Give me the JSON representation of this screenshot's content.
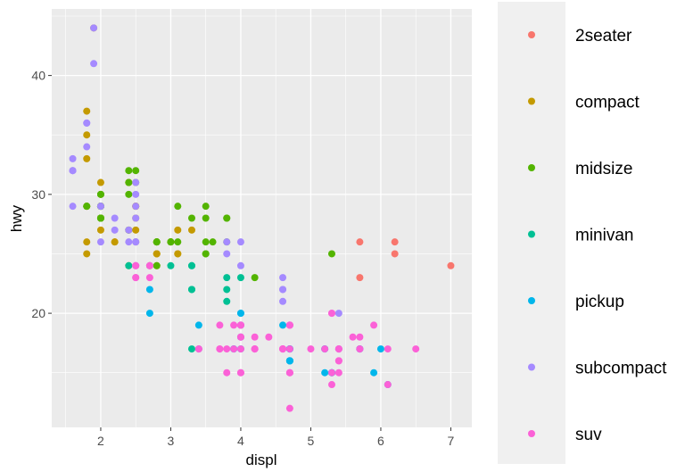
{
  "chart_data": {
    "type": "scatter",
    "title": "",
    "xlabel": "displ",
    "ylabel": "hwy",
    "xlim": [
      1.3,
      7.3
    ],
    "ylim": [
      10.4,
      45.6
    ],
    "x_ticks": [
      2,
      3,
      4,
      5,
      6,
      7
    ],
    "y_ticks": [
      20,
      30,
      40
    ],
    "x_tick_labels": [
      "2",
      "3",
      "4",
      "5",
      "6",
      "7"
    ],
    "y_tick_labels": [
      "20",
      "30",
      "40"
    ],
    "grid": true,
    "background": "#ebebeb",
    "grid_color": "#ffffff",
    "legend_position": "right",
    "series": [
      {
        "name": "2seater",
        "color": "#F8766D",
        "x": [
          5.7,
          5.7,
          6.2,
          6.2,
          7.0
        ],
        "y": [
          26,
          23,
          26,
          25,
          24
        ]
      },
      {
        "name": "compact",
        "color": "#C49A00",
        "x": [
          1.8,
          1.8,
          2.0,
          2.0,
          2.8,
          2.8,
          3.1,
          1.8,
          1.8,
          2.0,
          2.0,
          2.8,
          2.8,
          3.1,
          3.1,
          2.4,
          2.4,
          2.2,
          2.2,
          2.4,
          2.4,
          3.0,
          3.0,
          3.3,
          1.8,
          1.8,
          2.0,
          2.5,
          2.5,
          2.8,
          2.8,
          2.0,
          2.0,
          2.5,
          2.5,
          2.7,
          1.9,
          1.8,
          2.0,
          2.5,
          2.5
        ],
        "y": [
          29,
          29,
          31,
          30,
          26,
          26,
          27,
          26,
          25,
          28,
          27,
          25,
          25,
          25,
          25,
          31,
          31,
          26,
          26,
          27,
          24,
          26,
          26,
          27,
          33,
          35,
          29,
          29,
          27,
          24,
          25,
          28,
          29,
          29,
          26,
          24,
          44,
          37,
          29,
          28,
          29
        ]
      },
      {
        "name": "midsize",
        "color": "#53B400",
        "x": [
          2.8,
          3.1,
          4.2,
          2.4,
          2.4,
          3.1,
          3.5,
          3.6,
          2.4,
          2.4,
          2.5,
          2.5,
          3.3,
          3.5,
          3.0,
          3.0,
          3.5,
          3.5,
          3.8,
          3.8,
          3.8,
          5.3,
          1.8,
          1.8,
          2.0,
          2.0,
          2.8,
          2.0,
          2.0,
          2.0,
          2.0,
          2.8,
          2.0,
          2.0,
          2.0,
          2.0,
          2.0,
          2.8,
          3.5
        ],
        "y": [
          26,
          26,
          23,
          30,
          32,
          29,
          28,
          26,
          31,
          27,
          32,
          31,
          28,
          29,
          26,
          26,
          26,
          25,
          28,
          28,
          26,
          25,
          29,
          29,
          28,
          29,
          26,
          30,
          29,
          29,
          30,
          24,
          28,
          28,
          29,
          29,
          28,
          26,
          25
        ]
      },
      {
        "name": "minivan",
        "color": "#00C094",
        "x": [
          2.4,
          3.0,
          3.3,
          3.3,
          3.3,
          3.3,
          3.3,
          3.8,
          3.8,
          3.8,
          4.0
        ],
        "y": [
          24,
          24,
          22,
          22,
          24,
          24,
          17,
          22,
          21,
          23,
          23
        ]
      },
      {
        "name": "pickup",
        "color": "#00B6EB",
        "x": [
          2.7,
          2.7,
          3.4,
          3.4,
          4.0,
          4.7,
          4.7,
          4.7,
          5.2,
          5.2,
          3.9,
          3.9,
          4.7,
          4.7,
          4.7,
          5.2,
          5.7,
          5.9,
          4.7,
          4.7,
          4.7,
          4.7,
          5.7,
          6.1,
          5.3,
          5.3,
          5.3,
          5.7,
          6.0,
          4.0,
          4.0,
          4.0,
          4.0,
          4.6,
          5.4
        ],
        "y": [
          20,
          22,
          17,
          19,
          18,
          17,
          17,
          16,
          17,
          17,
          17,
          17,
          16,
          17,
          16,
          15,
          17,
          15,
          17,
          17,
          16,
          16,
          17,
          14,
          15,
          15,
          15,
          17,
          17,
          19,
          20,
          17,
          20,
          19,
          17
        ]
      },
      {
        "name": "subcompact",
        "color": "#A58AFF",
        "x": [
          3.8,
          3.8,
          4.0,
          4.0,
          4.6,
          4.6,
          4.6,
          4.6,
          5.4,
          1.6,
          1.6,
          1.6,
          1.6,
          1.6,
          1.8,
          1.8,
          1.8,
          2.0,
          2.4,
          2.4,
          2.5,
          2.5,
          2.5,
          2.5,
          2.5,
          2.5,
          2.5,
          2.2,
          2.2,
          2.5,
          2.7,
          1.9,
          1.9,
          2.0,
          2.0
        ],
        "y": [
          26,
          25,
          26,
          24,
          21,
          22,
          23,
          22,
          20,
          33,
          32,
          32,
          29,
          32,
          34,
          36,
          36,
          29,
          26,
          27,
          30,
          31,
          26,
          26,
          28,
          26,
          29,
          28,
          27,
          24,
          24,
          44,
          41,
          29,
          26
        ]
      },
      {
        "name": "suv",
        "color": "#FB61D7",
        "x": [
          5.3,
          5.3,
          5.3,
          5.7,
          6.5,
          3.7,
          3.7,
          3.9,
          3.9,
          4.7,
          4.7,
          4.7,
          5.2,
          5.7,
          5.9,
          4.7,
          4.7,
          4.7,
          4.7,
          5.7,
          4.6,
          5.4,
          5.4,
          4.0,
          4.0,
          4.0,
          4.0,
          4.6,
          5.0,
          4.2,
          4.2,
          4.6,
          4.6,
          4.6,
          5.4,
          5.4,
          3.7,
          3.8,
          3.8,
          5.3,
          2.5,
          2.5,
          2.5,
          2.5,
          2.7,
          2.7,
          3.4,
          3.4,
          4.0,
          4.7,
          4.2,
          4.2,
          4.0,
          4.0,
          4.0,
          4.4,
          5.4,
          5.4,
          6.1,
          5.6,
          6.1,
          4.7
        ],
        "y": [
          20,
          15,
          20,
          17,
          17,
          19,
          17,
          17,
          19,
          19,
          12,
          17,
          17,
          17,
          19,
          15,
          15,
          19,
          19,
          18,
          17,
          17,
          16,
          19,
          19,
          19,
          15,
          17,
          17,
          17,
          17,
          17,
          17,
          17,
          15,
          17,
          17,
          17,
          15,
          14,
          23,
          24,
          24,
          23,
          24,
          23,
          17,
          17,
          18,
          15,
          18,
          17,
          17,
          18,
          15,
          18,
          16,
          17,
          14,
          18,
          17,
          19
        ]
      }
    ]
  }
}
